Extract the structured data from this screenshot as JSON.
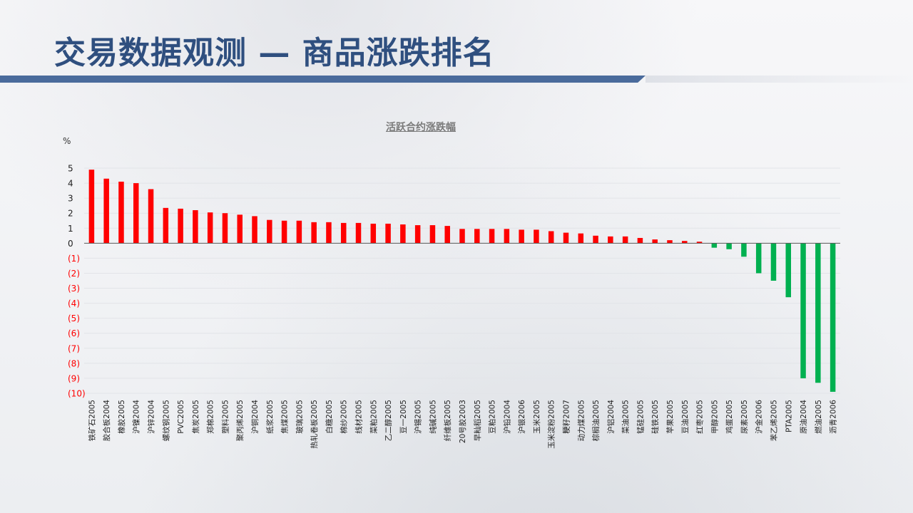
{
  "header": {
    "title": "交易数据观测 — 商品涨跌排名"
  },
  "chart_data": {
    "type": "bar",
    "title": "活跃合约涨跌幅",
    "ylabel": "%",
    "ylim": [
      -10,
      5
    ],
    "yticks": [
      5,
      4,
      3,
      2,
      1,
      0,
      -1,
      -2,
      -3,
      -4,
      -5,
      -6,
      -7,
      -8,
      -9,
      -10
    ],
    "yticklabels": [
      "5",
      "4",
      "3",
      "2",
      "1",
      "0",
      "(1)",
      "(2)",
      "(3)",
      "(4)",
      "(5)",
      "(6)",
      "(7)",
      "(8)",
      "(9)",
      "(10)"
    ],
    "grid": true,
    "positive_color": "#ff0000",
    "negative_color": "#00b050",
    "negative_label_color": "#ff0000",
    "categories": [
      "铁矿石2005",
      "胶合板2004",
      "橡胶2005",
      "沪镍2004",
      "沪锌2004",
      "螺纹钢2005",
      "PVC2005",
      "焦炭2005",
      "郑棉2005",
      "塑料2005",
      "聚丙烯2005",
      "沪铜2004",
      "纸浆2005",
      "焦煤2005",
      "玻璃2005",
      "热轧卷板2005",
      "白糖2005",
      "棉纱2005",
      "线材2005",
      "菜粕2005",
      "乙二醇2005",
      "豆一2005",
      "沪锡2005",
      "纯碱2005",
      "纤维板2005",
      "20号胶2003",
      "早籼稻2005",
      "豆粕2005",
      "沪铅2004",
      "沪银2006",
      "玉米2005",
      "玉米淀粉2005",
      "粳籽2007",
      "动力煤2005",
      "棕榈油2005",
      "沪铝2004",
      "菜油2005",
      "锰硅2005",
      "硅铁2005",
      "苹果2005",
      "豆油2005",
      "红枣2005",
      "甲醇2005",
      "鸡蛋2005",
      "尿素2005",
      "沪金2006",
      "苯乙烯2005",
      "PTA2005",
      "原油2004",
      "燃油2005",
      "沥青2006"
    ],
    "values": [
      4.9,
      4.3,
      4.1,
      4.0,
      3.6,
      2.35,
      2.3,
      2.2,
      2.05,
      2.0,
      1.9,
      1.8,
      1.55,
      1.5,
      1.5,
      1.4,
      1.4,
      1.35,
      1.35,
      1.3,
      1.3,
      1.25,
      1.2,
      1.2,
      1.15,
      0.95,
      0.95,
      0.95,
      0.95,
      0.9,
      0.9,
      0.8,
      0.7,
      0.65,
      0.5,
      0.45,
      0.45,
      0.35,
      0.25,
      0.2,
      0.15,
      0.1,
      -0.3,
      -0.4,
      -0.9,
      -2.0,
      -2.5,
      -3.6,
      -9.0,
      -9.3,
      -9.9
    ]
  }
}
